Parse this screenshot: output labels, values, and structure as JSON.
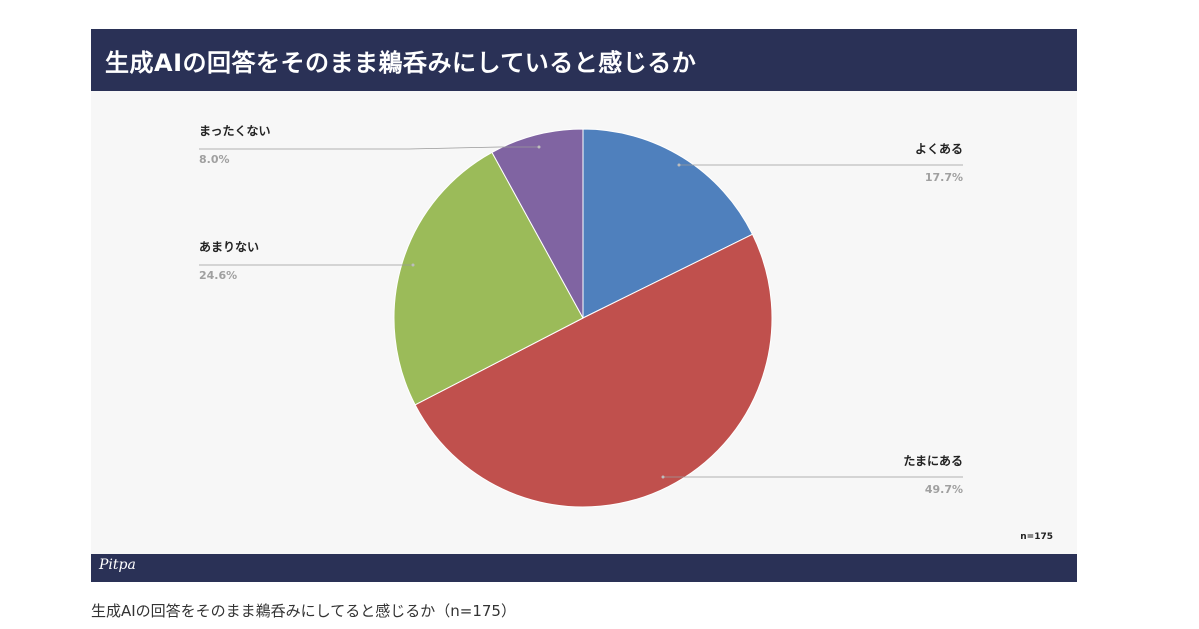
{
  "header": {
    "title": "生成AIの回答をそのまま鵜呑みにしていると感じるか"
  },
  "sample_size_label": "n=175",
  "logo_text": "Pitpa",
  "caption": "生成AIの回答をそのまま鵜呑みにしてると感じるか（n=175）",
  "colors": {
    "header_bg": "#2a3156",
    "slide_bg": "#f7f7f7"
  },
  "chart_data": {
    "type": "pie",
    "title": "生成AIの回答をそのまま鵜呑みにしていると感じるか",
    "start": "12 o'clock, clockwise",
    "slices": [
      {
        "label": "よくある",
        "value": 17.7,
        "display": "17.7%",
        "color": "#4f80bd",
        "side": "right"
      },
      {
        "label": "たまにある",
        "value": 49.7,
        "display": "49.7%",
        "color": "#c0504d",
        "side": "right"
      },
      {
        "label": "あまりない",
        "value": 24.6,
        "display": "24.6%",
        "color": "#9bbb59",
        "side": "left"
      },
      {
        "label": "まったくない",
        "value": 8.0,
        "display": "8.0%",
        "color": "#8064a2",
        "side": "left"
      }
    ]
  }
}
